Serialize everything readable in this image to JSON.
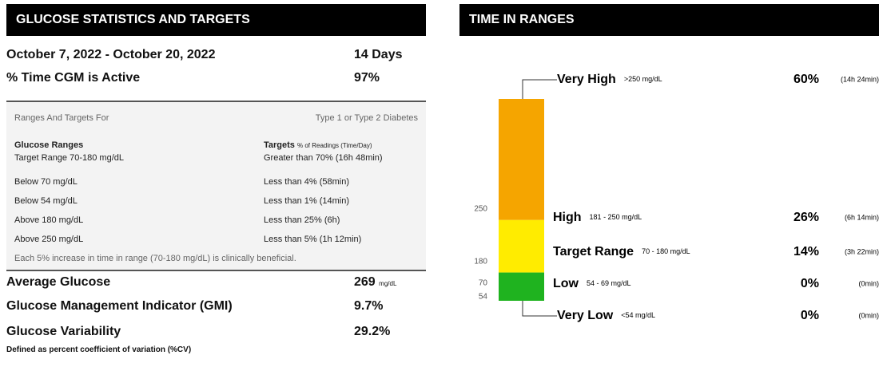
{
  "left": {
    "title": "GLUCOSE STATISTICS AND TARGETS",
    "period": {
      "label": "October 7, 2022 - October 20, 2022",
      "value": "14 Days"
    },
    "active": {
      "label": "% Time CGM is Active",
      "value": "97%"
    },
    "targets": {
      "heading": "Ranges And Targets For",
      "diabetes_type": "Type 1 or Type 2 Diabetes",
      "col1": "Glucose Ranges",
      "col2": "Targets",
      "col2_note": "% of Readings (Time/Day)",
      "rows": [
        [
          "Target Range 70-180 mg/dL",
          "Greater than 70% (16h 48min)"
        ],
        [
          "Below 70 mg/dL",
          "Less than 4% (58min)"
        ],
        [
          "Below 54 mg/dL",
          "Less than 1% (14min)"
        ],
        [
          "Above 180 mg/dL",
          "Less than 25% (6h)"
        ],
        [
          "Above 250 mg/dL",
          "Less than 5% (1h 12min)"
        ]
      ],
      "footnote": "Each 5% increase in time in range (70-180 mg/dL) is clinically beneficial."
    },
    "stats": [
      {
        "label": "Average Glucose",
        "value": "269",
        "unit": "mg/dL"
      },
      {
        "label": "Glucose Management Indicator (GMI)",
        "value": "9.7%"
      },
      {
        "label": "Glucose Variability",
        "value": "29.2%"
      }
    ],
    "stats_note": "Defined as percent coefficient of variation (%CV)"
  },
  "right": {
    "title": "TIME IN RANGES",
    "ranges": [
      {
        "name": "Very High",
        "limits": ">250 mg/dL",
        "percent": 60,
        "percent_label": "60%",
        "time": "(14h 24min)",
        "color": "#f5a500"
      },
      {
        "name": "High",
        "limits": "181 - 250 mg/dL",
        "percent": 26,
        "percent_label": "26%",
        "time": "(6h 14min)",
        "color": "#ffec00"
      },
      {
        "name": "Target Range",
        "limits": "70 - 180 mg/dL",
        "percent": 14,
        "percent_label": "14%",
        "time": "(3h 22min)",
        "color": "#1fb31f"
      },
      {
        "name": "Low",
        "limits": "54 - 69 mg/dL",
        "percent": 0,
        "percent_label": "0%",
        "time": "(0min)",
        "color": "#e31b1b"
      },
      {
        "name": "Very Low",
        "limits": "<54 mg/dL",
        "percent": 0,
        "percent_label": "0%",
        "time": "(0min)",
        "color": "#a80000"
      }
    ],
    "thresholds": [
      "250",
      "180",
      "70",
      "54"
    ]
  }
}
